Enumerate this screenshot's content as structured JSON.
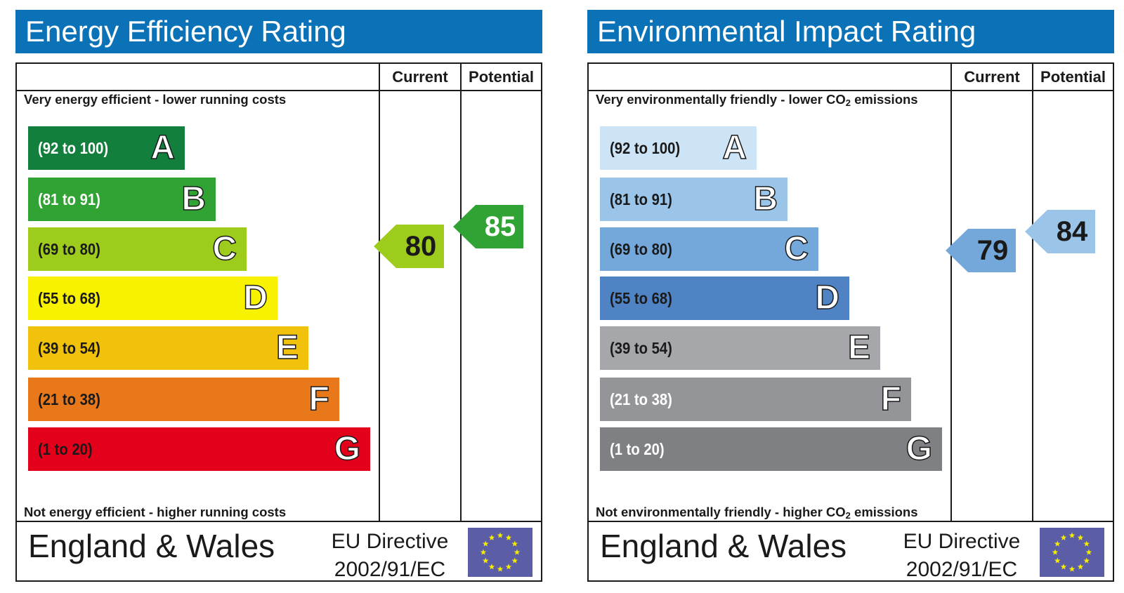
{
  "charts": [
    {
      "title": "Energy Efficiency Rating",
      "columns": {
        "current": "Current",
        "potential": "Potential"
      },
      "top_note": {
        "text": "Very energy efficient - lower running costs",
        "sub": ""
      },
      "bottom_note": {
        "text": "Not energy efficient - higher running costs",
        "sub": ""
      },
      "footer": {
        "country": "England & Wales",
        "directive_line1": "EU Directive",
        "directive_line2": "2002/91/EC"
      }
    },
    {
      "title": "Environmental Impact Rating",
      "columns": {
        "current": "Current",
        "potential": "Potential"
      },
      "top_note": {
        "text": "Very environmentally friendly - lower CO",
        "sub": "2",
        "tail": " emissions"
      },
      "bottom_note": {
        "text": "Not environmentally friendly - higher CO",
        "sub": "2",
        "tail": " emissions"
      },
      "footer": {
        "country": "England & Wales",
        "directive_line1": "EU Directive",
        "directive_line2": "2002/91/EC"
      }
    }
  ],
  "chart_data": [
    {
      "type": "bar",
      "title": "Energy Efficiency Rating",
      "bands": [
        {
          "letter": "A",
          "range": "(92 to 100)",
          "color": "#127f3c",
          "text_color": "#ffffff",
          "letter_fill": "#ffffff"
        },
        {
          "letter": "B",
          "range": "(81 to 91)",
          "color": "#31a334",
          "text_color": "#ffffff",
          "letter_fill": "#ffffff"
        },
        {
          "letter": "C",
          "range": "(69 to 80)",
          "color": "#9dcc1d",
          "text_color": "#1a1a1a",
          "letter_fill": "#ffffff"
        },
        {
          "letter": "D",
          "range": "(55 to 68)",
          "color": "#f8f200",
          "text_color": "#1a1a1a",
          "letter_fill": "#ffffff"
        },
        {
          "letter": "E",
          "range": "(39 to 54)",
          "color": "#f1c20c",
          "text_color": "#1a1a1a",
          "letter_fill": "#ffffff"
        },
        {
          "letter": "F",
          "range": "(21 to 38)",
          "color": "#e8781a",
          "text_color": "#1a1a1a",
          "letter_fill": "#ffffff"
        },
        {
          "letter": "G",
          "range": "(1 to 20)",
          "color": "#e2001a",
          "text_color": "#1a1a1a",
          "letter_fill": "#ffffff"
        }
      ],
      "current": {
        "value": 80,
        "band": "C",
        "color": "#9dcc1d",
        "text_color": "#1a1a1a"
      },
      "potential": {
        "value": 85,
        "band": "B",
        "color": "#31a334",
        "text_color": "#ffffff"
      }
    },
    {
      "type": "bar",
      "title": "Environmental Impact Rating",
      "bands": [
        {
          "letter": "A",
          "range": "(92 to 100)",
          "color": "#cde3f6",
          "text_color": "#1a1a1a",
          "letter_fill": "#ffffff"
        },
        {
          "letter": "B",
          "range": "(81 to 91)",
          "color": "#9ac4e8",
          "text_color": "#1a1a1a",
          "letter_fill": "#ffffff"
        },
        {
          "letter": "C",
          "range": "(69 to 80)",
          "color": "#74a7da",
          "text_color": "#1a1a1a",
          "letter_fill": "#ffffff"
        },
        {
          "letter": "D",
          "range": "(55 to 68)",
          "color": "#4f83c4",
          "text_color": "#1a1a1a",
          "letter_fill": "#ffffff"
        },
        {
          "letter": "E",
          "range": "(39 to 54)",
          "color": "#a5a7aa",
          "text_color": "#1a1a1a",
          "letter_fill": "#ffffff"
        },
        {
          "letter": "F",
          "range": "(21 to 38)",
          "color": "#939598",
          "text_color": "#ffffff",
          "letter_fill": "#ffffff"
        },
        {
          "letter": "G",
          "range": "(1 to 20)",
          "color": "#7f8083",
          "text_color": "#ffffff",
          "letter_fill": "#ffffff"
        }
      ],
      "current": {
        "value": 79,
        "band": "C",
        "color": "#74a7da",
        "text_color": "#1a1a1a"
      },
      "potential": {
        "value": 84,
        "band": "B",
        "color": "#9ac4e8",
        "text_color": "#1a1a1a"
      }
    }
  ],
  "colors": {
    "title_bar": "#0b72b8",
    "eu_flag": "#5b5ea6",
    "eu_stars": "#f5ec00",
    "border": "#1a1a1a"
  },
  "icons": {
    "flag": "eu-flag-icon"
  }
}
